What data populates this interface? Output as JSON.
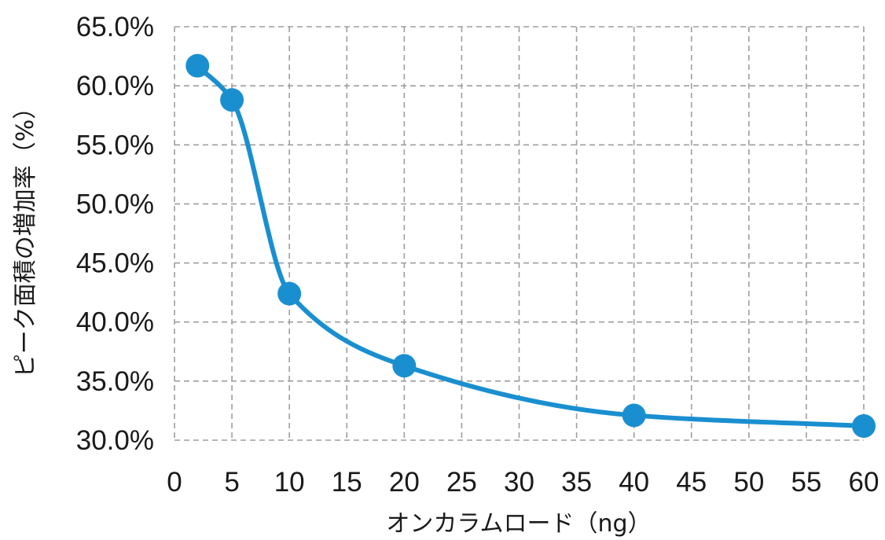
{
  "chart_data": {
    "type": "line",
    "xlabel": "オンカラムロード（ng）",
    "ylabel": "ピーク面積の増加率（%）",
    "xlim": [
      0,
      60
    ],
    "ylim": [
      30,
      65
    ],
    "x_ticks": [
      0,
      5,
      10,
      15,
      20,
      25,
      30,
      35,
      40,
      45,
      50,
      55,
      60
    ],
    "x_tick_labels": [
      "0",
      "5",
      "10",
      "15",
      "20",
      "25",
      "30",
      "35",
      "40",
      "45",
      "50",
      "55",
      "60"
    ],
    "y_ticks": [
      30,
      35,
      40,
      45,
      50,
      55,
      60,
      65
    ],
    "y_tick_labels": [
      "30.0%",
      "35.0%",
      "40.0%",
      "45.0%",
      "50.0%",
      "55.0%",
      "60.0%",
      "65.0%"
    ],
    "grid": true,
    "smooth": true,
    "series": [
      {
        "x": [
          2,
          5,
          10,
          20,
          40,
          60
        ],
        "y": [
          61.7,
          58.8,
          42.4,
          36.3,
          32.1,
          31.2
        ]
      }
    ],
    "colors": {
      "series": "#1a8fd0",
      "grid": "#9e9e9e",
      "text": "#1a1a1a"
    }
  }
}
